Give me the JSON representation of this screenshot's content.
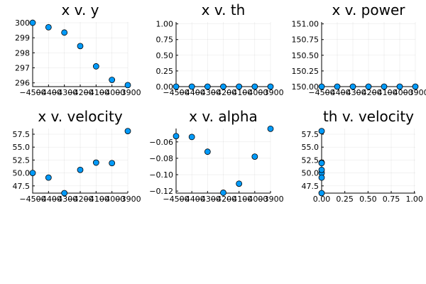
{
  "chart_data": [
    {
      "type": "scatter",
      "title": "x v. y",
      "x": [
        -4500,
        -4400,
        -4300,
        -4200,
        -4100,
        -4000,
        -3900
      ],
      "y": [
        300.0,
        299.7,
        299.35,
        298.45,
        297.1,
        296.2,
        295.85
      ],
      "xlim": [
        -4500,
        -3900
      ],
      "ylim": [
        295.75,
        300.05
      ],
      "xticks": [
        -4500,
        -4400,
        -4300,
        -4200,
        -4100,
        -4000,
        -3900
      ],
      "xtick_labels": [
        "−4500",
        "−4400",
        "−4300",
        "−4200",
        "−4100",
        "−4000",
        "−3900"
      ],
      "yticks": [
        296,
        297,
        298,
        299,
        300
      ],
      "ytick_labels": [
        "296",
        "297",
        "298",
        "299",
        "300"
      ],
      "color": "#009af9",
      "grid": true
    },
    {
      "type": "scatter",
      "title": "x v. th",
      "x": [
        -4500,
        -4400,
        -4300,
        -4200,
        -4100,
        -4000,
        -3900
      ],
      "y": [
        0,
        0,
        0,
        0,
        0,
        0,
        0
      ],
      "xlim": [
        -4500,
        -3900
      ],
      "ylim": [
        0,
        1.03
      ],
      "xticks": [
        -4500,
        -4400,
        -4300,
        -4200,
        -4100,
        -4000,
        -3900
      ],
      "xtick_labels": [
        "−4500",
        "−4400",
        "−4300",
        "−4200",
        "−4100",
        "−4000",
        "−3900"
      ],
      "yticks": [
        0,
        0.25,
        0.5,
        0.75,
        1.0
      ],
      "ytick_labels": [
        "0.00",
        "0.25",
        "0.50",
        "0.75",
        "1.00"
      ],
      "color": "#009af9",
      "grid": true
    },
    {
      "type": "scatter",
      "title": "x v. power",
      "x": [
        -4500,
        -4400,
        -4300,
        -4200,
        -4100,
        -4000,
        -3900
      ],
      "y": [
        150,
        150,
        150,
        150,
        150,
        150,
        150
      ],
      "xlim": [
        -4500,
        -3900
      ],
      "ylim": [
        150,
        151.03
      ],
      "xticks": [
        -4500,
        -4400,
        -4300,
        -4200,
        -4100,
        -4000,
        -3900
      ],
      "xtick_labels": [
        "−4500",
        "−4400",
        "−4300",
        "−4200",
        "−4100",
        "−4000",
        "−3900"
      ],
      "yticks": [
        150,
        150.25,
        150.5,
        150.75,
        151
      ],
      "ytick_labels": [
        "150.00",
        "150.25",
        "150.50",
        "150.75",
        "151.00"
      ],
      "color": "#009af9",
      "grid": true
    },
    {
      "type": "scatter",
      "title": "x v. velocity",
      "x": [
        -4500,
        -4400,
        -4300,
        -4200,
        -4100,
        -4000,
        -3900
      ],
      "y": [
        50.0,
        49.1,
        46.1,
        50.6,
        52.0,
        51.9,
        58.1
      ],
      "xlim": [
        -4500,
        -3900
      ],
      "ylim": [
        46.1,
        58.6
      ],
      "xticks": [
        -4500,
        -4400,
        -4300,
        -4200,
        -4100,
        -4000,
        -3900
      ],
      "xtick_labels": [
        "−4500",
        "−4400",
        "−4300",
        "−4200",
        "−4100",
        "−4000",
        "−3900"
      ],
      "yticks": [
        47.5,
        50.0,
        52.5,
        55.0,
        57.5
      ],
      "ytick_labels": [
        "47.5",
        "50.0",
        "52.5",
        "55.0",
        "57.5"
      ],
      "color": "#009af9",
      "grid": true
    },
    {
      "type": "scatter",
      "title": "x v. alpha",
      "x": [
        -4500,
        -4400,
        -4300,
        -4200,
        -4100,
        -4000,
        -3900
      ],
      "y": [
        -0.053,
        -0.054,
        -0.072,
        -0.122,
        -0.111,
        -0.078,
        -0.044
      ],
      "xlim": [
        -4500,
        -3900
      ],
      "ylim": [
        -0.1225,
        -0.0437
      ],
      "xticks": [
        -4500,
        -4400,
        -4300,
        -4200,
        -4100,
        -4000,
        -3900
      ],
      "xtick_labels": [
        "−4500",
        "−4400",
        "−4300",
        "−4200",
        "−4100",
        "−4000",
        "−3900"
      ],
      "yticks": [
        -0.12,
        -0.1,
        -0.08,
        -0.06
      ],
      "ytick_labels": [
        "−0.12",
        "−0.10",
        "−0.08",
        "−0.06"
      ],
      "color": "#009af9",
      "grid": true
    },
    {
      "type": "scatter",
      "title": "th v. velocity",
      "x": [
        0,
        0,
        0,
        0,
        0,
        0,
        0
      ],
      "y": [
        50.0,
        49.1,
        46.1,
        50.6,
        52.0,
        51.9,
        58.1
      ],
      "xlim": [
        0,
        1.01
      ],
      "ylim": [
        46.1,
        58.6
      ],
      "xticks": [
        0,
        0.25,
        0.5,
        0.75,
        1.0
      ],
      "xtick_labels": [
        "0.00",
        "0.25",
        "0.50",
        "0.75",
        "1.00"
      ],
      "yticks": [
        47.5,
        50.0,
        52.5,
        55.0,
        57.5
      ],
      "ytick_labels": [
        "47.5",
        "50.0",
        "52.5",
        "55.0",
        "57.5"
      ],
      "color": "#009af9",
      "grid": true
    }
  ]
}
